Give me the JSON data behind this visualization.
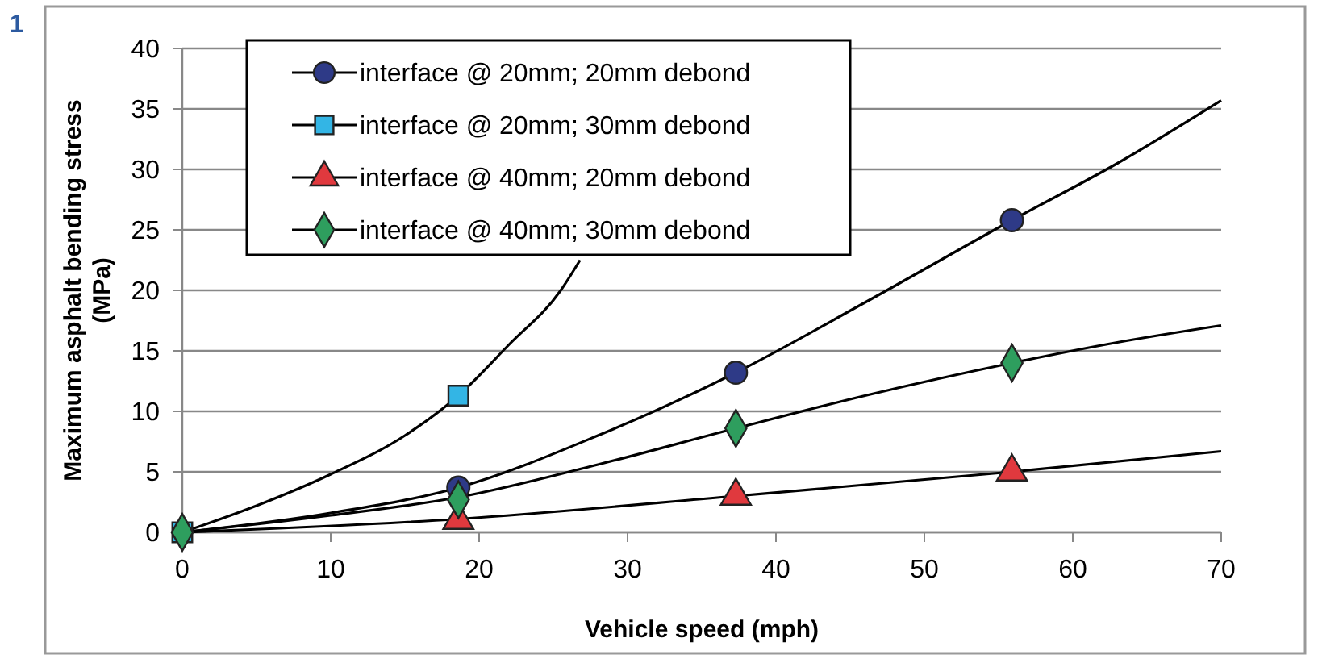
{
  "chart_data": {
    "type": "scatter",
    "xlabel": "Vehicle speed (mph)",
    "ylabel": "Maximum asphalt bending stress (MPa)",
    "annotations": [
      "1"
    ],
    "xlim": [
      0,
      70
    ],
    "xticks": [
      0,
      10,
      20,
      30,
      40,
      50,
      60,
      70
    ],
    "ylim": [
      0,
      40
    ],
    "yticks": [
      0,
      5,
      10,
      15,
      20,
      25,
      30,
      35,
      40
    ],
    "grid": "y",
    "legend": "top left",
    "series": [
      {
        "type": "line",
        "color": "#000000",
        "marker": "none",
        "x": [
          0,
          10,
          18.6,
          28,
          37.3,
          46,
          55.9,
          63,
          70
        ],
        "values": [
          0,
          1.6,
          3.7,
          8,
          13.2,
          19,
          25.8,
          30.5,
          35.7
        ]
      },
      {
        "type": "line",
        "color": "#000000",
        "marker": "none",
        "x": [
          0,
          5,
          10,
          15,
          18.6,
          22,
          25.5,
          26.8
        ],
        "values": [
          0,
          2.2,
          4.8,
          8,
          11.3,
          15.5,
          20,
          22.5
        ]
      },
      {
        "type": "line",
        "color": "#000000",
        "marker": "none",
        "x": [
          0,
          18.6,
          37.3,
          55.9,
          70
        ],
        "values": [
          0,
          1.1,
          3,
          5,
          6.7
        ]
      },
      {
        "type": "line",
        "color": "#000000",
        "marker": "none",
        "x": [
          0,
          10,
          18.6,
          28,
          37.3,
          46,
          55.9,
          63,
          70
        ],
        "values": [
          0,
          1.4,
          2.9,
          5.6,
          8.6,
          11.3,
          14,
          15.7,
          17.1
        ]
      },
      {
        "name": "interface @ 20mm; 20mm debond",
        "color": "#2e3a87",
        "marker": "circle",
        "x": [
          18.6,
          37.3,
          55.9
        ],
        "values": [
          3.7,
          13.2,
          25.8
        ]
      },
      {
        "name": "interface @ 20mm; 30mm debond",
        "color": "#33b5e5",
        "marker": "square",
        "x": [
          0,
          18.6
        ],
        "values": [
          0,
          11.3
        ]
      },
      {
        "name": "interface @ 40mm; 20mm debond",
        "color": "#e0393e",
        "marker": "triangle",
        "x": [
          18.6,
          37.3,
          55.9
        ],
        "values": [
          1,
          3,
          5
        ]
      },
      {
        "name": "interface @ 40mm; 30mm debond",
        "color": "#2e9e5e",
        "marker": "diamond",
        "x": [
          0,
          18.6,
          37.3,
          55.9
        ],
        "values": [
          0,
          2.7,
          8.6,
          14
        ]
      }
    ]
  }
}
